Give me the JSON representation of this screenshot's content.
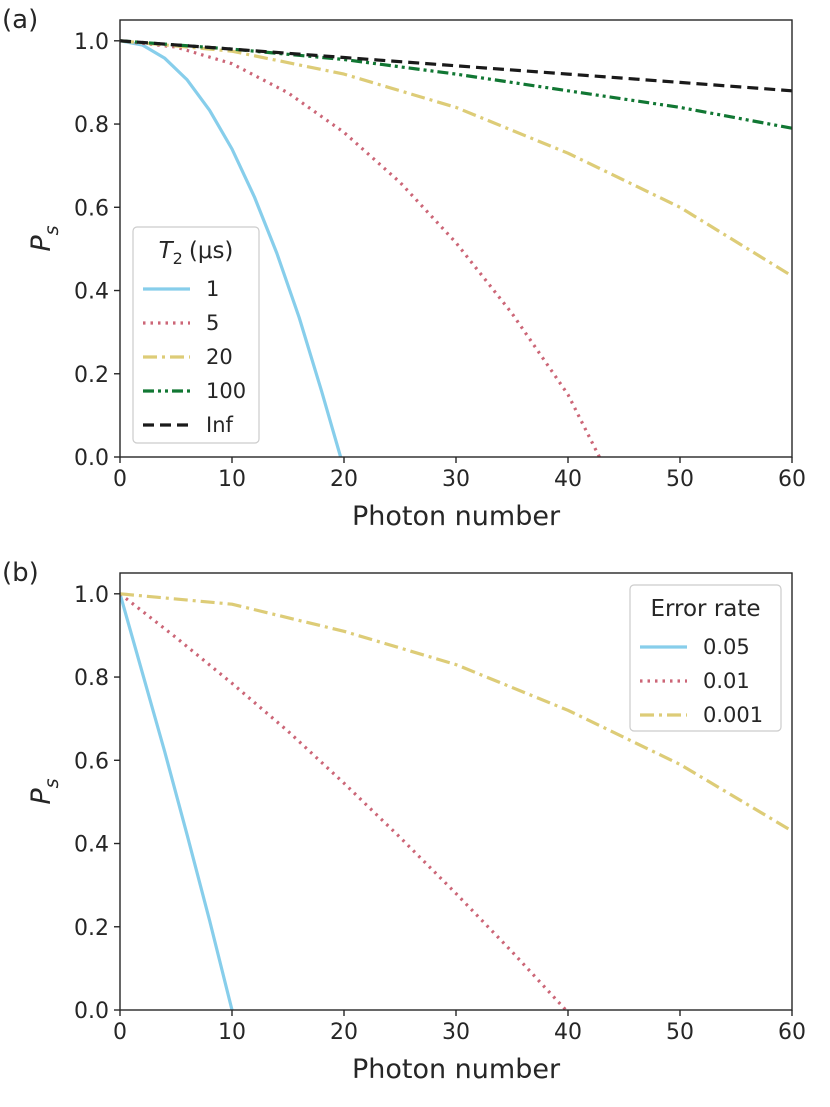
{
  "chart_data": [
    {
      "panel_label": "(a)",
      "type": "line",
      "xlabel": "Photon number",
      "ylabel": "P",
      "ylabel_sub": "s",
      "xlim": [
        0,
        60
      ],
      "ylim": [
        0,
        1.05
      ],
      "xticks": [
        0,
        10,
        20,
        30,
        40,
        50,
        60
      ],
      "yticks": [
        0.0,
        0.2,
        0.4,
        0.6,
        0.8,
        1.0
      ],
      "xtick_labels": [
        "0",
        "10",
        "20",
        "30",
        "40",
        "50",
        "60"
      ],
      "ytick_labels": [
        "0.0",
        "0.2",
        "0.4",
        "0.6",
        "0.8",
        "1.0"
      ],
      "grid": false,
      "legend_position": "center-left",
      "legend_title": "T",
      "legend_title_sub": "2",
      "legend_title_unit": "(μs)",
      "series": [
        {
          "name": "1",
          "color": "#87CEEB",
          "style": "solid",
          "x": [
            0,
            2,
            4,
            6,
            8,
            10,
            12,
            14,
            16,
            18,
            19.7
          ],
          "y": [
            1.0,
            0.99,
            0.958,
            0.906,
            0.833,
            0.74,
            0.625,
            0.49,
            0.335,
            0.158,
            0.0
          ]
        },
        {
          "name": "5",
          "color": "#CC6677",
          "style": "dotted",
          "x": [
            0,
            5,
            10,
            15,
            20,
            25,
            30,
            35,
            40,
            42.8
          ],
          "y": [
            1.0,
            0.985,
            0.945,
            0.875,
            0.78,
            0.66,
            0.515,
            0.345,
            0.15,
            0.0
          ]
        },
        {
          "name": "20",
          "color": "#DDCC77",
          "style": "dashdot",
          "x": [
            0,
            10,
            20,
            30,
            40,
            50,
            60
          ],
          "y": [
            1.0,
            0.975,
            0.92,
            0.84,
            0.73,
            0.6,
            0.435
          ]
        },
        {
          "name": "100",
          "color": "#117733",
          "style": "dashdotdot",
          "x": [
            0,
            10,
            20,
            30,
            40,
            50,
            60
          ],
          "y": [
            1.0,
            0.98,
            0.955,
            0.92,
            0.88,
            0.84,
            0.79
          ]
        },
        {
          "name": "Inf",
          "color": "#1a1a1a",
          "style": "dashed",
          "x": [
            0,
            10,
            20,
            30,
            40,
            50,
            60
          ],
          "y": [
            1.0,
            0.98,
            0.96,
            0.94,
            0.92,
            0.9,
            0.88
          ]
        }
      ]
    },
    {
      "panel_label": "(b)",
      "type": "line",
      "xlabel": "Photon number",
      "ylabel": "P",
      "ylabel_sub": "s",
      "xlim": [
        0,
        60
      ],
      "ylim": [
        0,
        1.05
      ],
      "xticks": [
        0,
        10,
        20,
        30,
        40,
        50,
        60
      ],
      "yticks": [
        0.0,
        0.2,
        0.4,
        0.6,
        0.8,
        1.0
      ],
      "xtick_labels": [
        "0",
        "10",
        "20",
        "30",
        "40",
        "50",
        "60"
      ],
      "ytick_labels": [
        "0.0",
        "0.2",
        "0.4",
        "0.6",
        "0.8",
        "1.0"
      ],
      "grid": false,
      "legend_position": "top-right",
      "legend_title": "Error rate",
      "legend_title_sub": "",
      "legend_title_unit": "",
      "series": [
        {
          "name": "0.05",
          "color": "#87CEEB",
          "style": "solid",
          "x": [
            0,
            2,
            4,
            6,
            8,
            10
          ],
          "y": [
            1.0,
            0.81,
            0.62,
            0.42,
            0.215,
            0.0
          ]
        },
        {
          "name": "0.01",
          "color": "#CC6677",
          "style": "dotted",
          "x": [
            0,
            5,
            10,
            15,
            20,
            25,
            30,
            35,
            39.8
          ],
          "y": [
            1.0,
            0.895,
            0.785,
            0.67,
            0.545,
            0.415,
            0.28,
            0.14,
            0.0
          ]
        },
        {
          "name": "0.001",
          "color": "#DDCC77",
          "style": "dashdot",
          "x": [
            0,
            10,
            20,
            30,
            40,
            50,
            60
          ],
          "y": [
            1.0,
            0.975,
            0.91,
            0.83,
            0.72,
            0.59,
            0.43
          ]
        }
      ]
    }
  ]
}
